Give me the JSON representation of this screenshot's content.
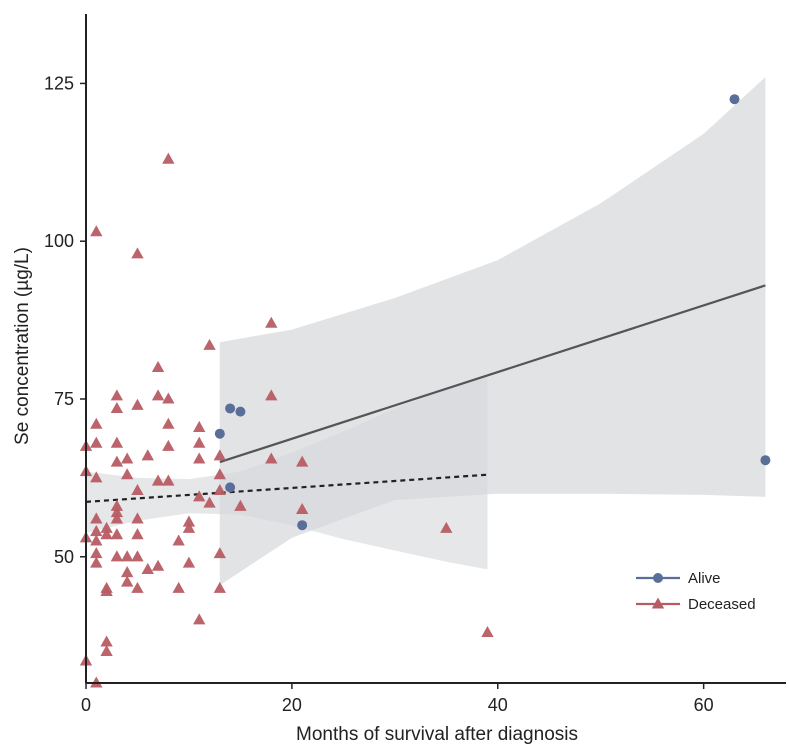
{
  "chart_data": {
    "type": "scatter",
    "title": "",
    "xlabel": "Months of survival after diagnosis",
    "ylabel": "Se concentration (µg/L)",
    "xlim": [
      0,
      68
    ],
    "ylim": [
      30,
      136
    ],
    "xticks": [
      0,
      20,
      40,
      60
    ],
    "yticks": [
      50,
      75,
      100,
      125
    ],
    "grid": false,
    "legend_position": "bottom-right",
    "series": [
      {
        "name": "Alive",
        "marker": "circle",
        "color": "#5a6e9a",
        "points": [
          [
            63,
            122.5
          ],
          [
            66,
            65.3
          ],
          [
            14,
            73.5
          ],
          [
            15,
            73
          ],
          [
            13,
            69.5
          ],
          [
            14,
            61
          ],
          [
            21,
            55
          ]
        ],
        "fit": {
          "style": "solid",
          "color": "#555555",
          "x": [
            13,
            66
          ],
          "y": [
            65,
            93
          ]
        },
        "band": {
          "color": "#cfd0d3",
          "x": [
            13,
            20,
            30,
            40,
            50,
            60,
            66
          ],
          "upper": [
            84,
            86,
            91,
            97,
            106,
            117,
            126
          ],
          "lower": [
            45.5,
            53,
            59,
            60,
            60,
            59.8,
            59.5
          ]
        }
      },
      {
        "name": "Deceased",
        "marker": "triangle",
        "color": "#b85c64",
        "points": [
          [
            0,
            33.5
          ],
          [
            0,
            53
          ],
          [
            0,
            63.5
          ],
          [
            0,
            67.5
          ],
          [
            1,
            101.5
          ],
          [
            1,
            68
          ],
          [
            1,
            71
          ],
          [
            1,
            62.5
          ],
          [
            1,
            56
          ],
          [
            1,
            54
          ],
          [
            1,
            52.5
          ],
          [
            1,
            50.5
          ],
          [
            1,
            49
          ],
          [
            1,
            30
          ],
          [
            2,
            54.5
          ],
          [
            2,
            53.5
          ],
          [
            2,
            45
          ],
          [
            2,
            44.5
          ],
          [
            2,
            36.5
          ],
          [
            2,
            35
          ],
          [
            3,
            75.5
          ],
          [
            3,
            73.5
          ],
          [
            3,
            68
          ],
          [
            3,
            65
          ],
          [
            3,
            58
          ],
          [
            3,
            57
          ],
          [
            3,
            56
          ],
          [
            3,
            53.5
          ],
          [
            3,
            50
          ],
          [
            4,
            65.5
          ],
          [
            4,
            63
          ],
          [
            4,
            50
          ],
          [
            4,
            47.5
          ],
          [
            4,
            46
          ],
          [
            5,
            98
          ],
          [
            5,
            74
          ],
          [
            5,
            60.5
          ],
          [
            5,
            56
          ],
          [
            5,
            53.5
          ],
          [
            5,
            50
          ],
          [
            5,
            45
          ],
          [
            6,
            66
          ],
          [
            6,
            48
          ],
          [
            7,
            80
          ],
          [
            7,
            75.5
          ],
          [
            7,
            62
          ],
          [
            7,
            48.5
          ],
          [
            8,
            113
          ],
          [
            8,
            75
          ],
          [
            8,
            71
          ],
          [
            8,
            67.5
          ],
          [
            8,
            62
          ],
          [
            9,
            52.5
          ],
          [
            9,
            45
          ],
          [
            10,
            55.5
          ],
          [
            10,
            54.5
          ],
          [
            10,
            49
          ],
          [
            11,
            70.5
          ],
          [
            11,
            68
          ],
          [
            11,
            65.5
          ],
          [
            11,
            59.5
          ],
          [
            11,
            40
          ],
          [
            12,
            83.5
          ],
          [
            12,
            58.5
          ],
          [
            13,
            66
          ],
          [
            13,
            63
          ],
          [
            13,
            60.5
          ],
          [
            13,
            50.5
          ],
          [
            13,
            45
          ],
          [
            15,
            58
          ],
          [
            18,
            87
          ],
          [
            18,
            75.5
          ],
          [
            18,
            65.5
          ],
          [
            21,
            65
          ],
          [
            21,
            57.5
          ],
          [
            35,
            54.5
          ],
          [
            39,
            38
          ]
        ],
        "fit": {
          "style": "dashed",
          "color": "#222222",
          "x": [
            0,
            39
          ],
          "y": [
            58.7,
            63
          ]
        },
        "band": {
          "color": "#d6d7da",
          "x": [
            0,
            5,
            10,
            15,
            20,
            25,
            30,
            35,
            39
          ],
          "upper": [
            63.5,
            62.5,
            62.3,
            63.5,
            66.5,
            69.8,
            73.5,
            76.5,
            78.5
          ],
          "lower": [
            53.8,
            55.7,
            56.9,
            56.7,
            55,
            52.8,
            51,
            49.2,
            48
          ]
        }
      }
    ]
  }
}
